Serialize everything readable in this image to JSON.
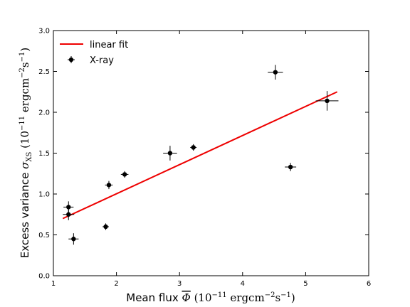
{
  "chart_data": {
    "type": "scatter",
    "title": "",
    "xlabel": "Mean flux Φ̄ (10⁻¹¹ ergcm⁻²s⁻¹)",
    "ylabel": "Excess variance σXS (10⁻¹¹ ergcm⁻²s⁻¹)",
    "xlim": [
      1,
      6
    ],
    "ylim": [
      0,
      3
    ],
    "x_ticks": [
      "1",
      "2",
      "3",
      "4",
      "5",
      "6"
    ],
    "y_ticks": [
      "0.0",
      "0.5",
      "1.0",
      "1.5",
      "2.0",
      "2.5",
      "3.0"
    ],
    "grid": false,
    "legend_position": "top-left",
    "series": [
      {
        "name": "X-ray",
        "color": "#000000",
        "marker": "circle",
        "points": [
          {
            "x": 1.24,
            "y": 0.84,
            "xerr": 0.08,
            "yerr": 0.07
          },
          {
            "x": 1.24,
            "y": 0.75,
            "xerr": 0.09,
            "yerr": 0.07
          },
          {
            "x": 1.32,
            "y": 0.45,
            "xerr": 0.08,
            "yerr": 0.07
          },
          {
            "x": 1.83,
            "y": 0.6,
            "xerr": 0.05,
            "yerr": 0.04
          },
          {
            "x": 1.88,
            "y": 1.11,
            "xerr": 0.06,
            "yerr": 0.05
          },
          {
            "x": 2.13,
            "y": 1.24,
            "xerr": 0.06,
            "yerr": 0.04
          },
          {
            "x": 2.85,
            "y": 1.5,
            "xerr": 0.11,
            "yerr": 0.09
          },
          {
            "x": 3.22,
            "y": 1.57,
            "xerr": 0.05,
            "yerr": 0.04
          },
          {
            "x": 4.52,
            "y": 2.49,
            "xerr": 0.12,
            "yerr": 0.09
          },
          {
            "x": 4.76,
            "y": 1.33,
            "xerr": 0.09,
            "yerr": 0.05
          },
          {
            "x": 5.34,
            "y": 2.14,
            "xerr": 0.18,
            "yerr": 0.12
          }
        ]
      }
    ],
    "fit": {
      "name": "linear fit",
      "color": "#ee0000",
      "x": [
        1.15,
        5.5
      ],
      "y": [
        0.7,
        2.25
      ]
    }
  }
}
